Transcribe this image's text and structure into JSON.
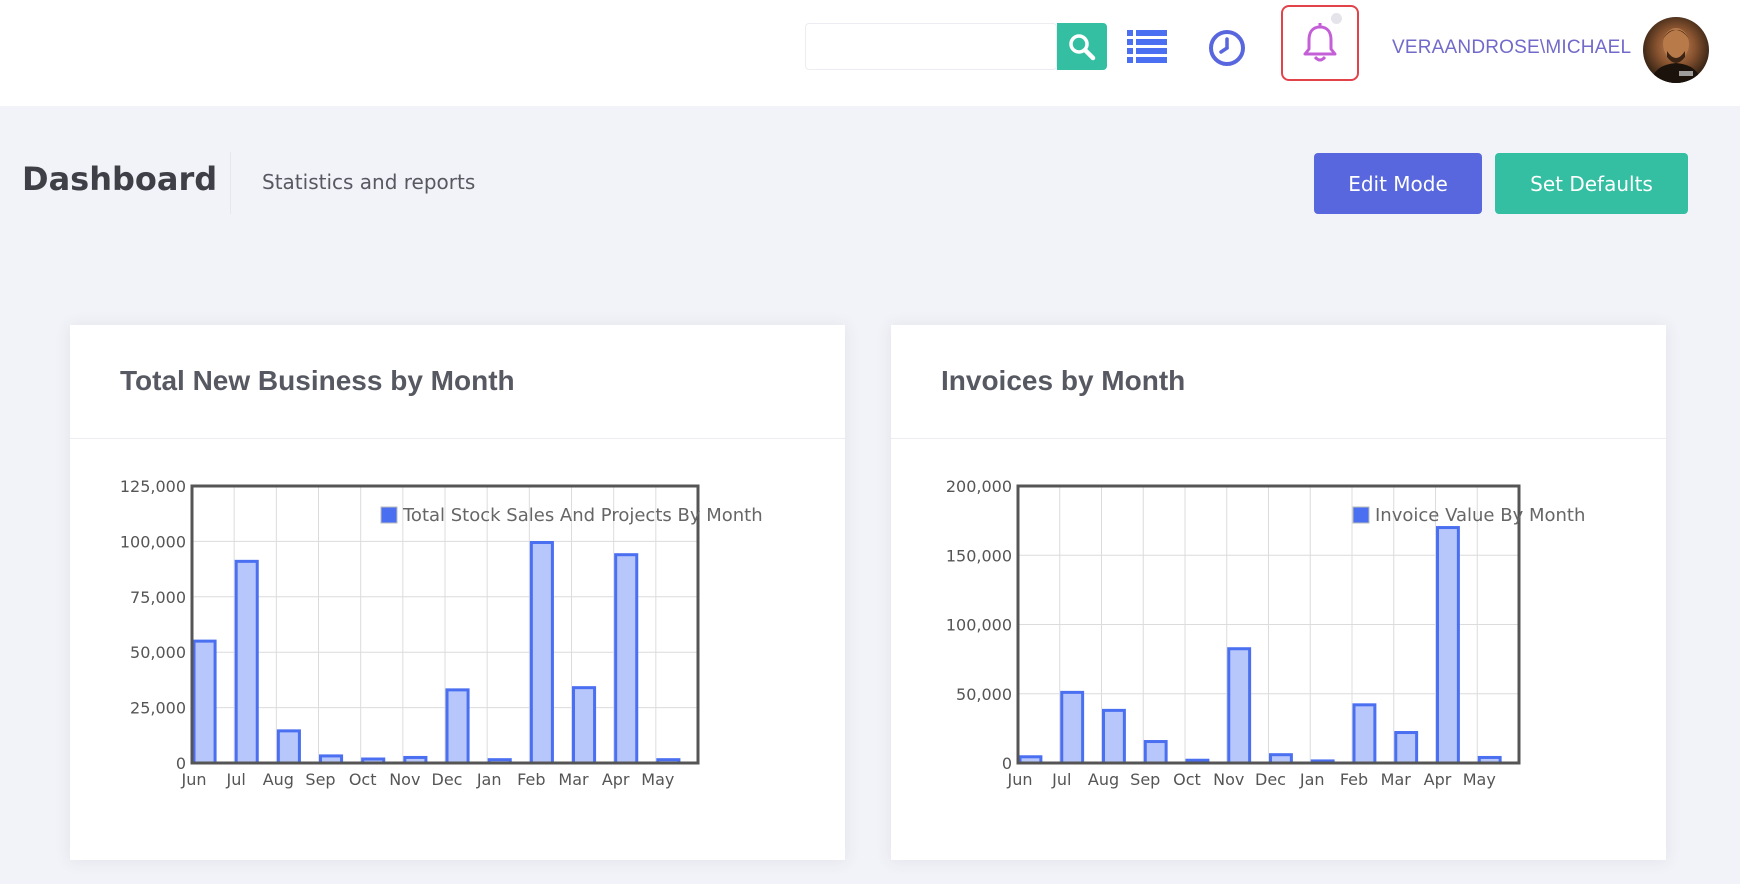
{
  "header": {
    "search": {
      "value": "",
      "placeholder": ""
    },
    "icons": [
      "search-icon",
      "list-icon",
      "clock-icon",
      "bell-icon"
    ],
    "username": "VERAANDROSE\\MICHAEL",
    "colors": {
      "accent": "#716aca",
      "teal": "#34bfa3",
      "brand": "#5867dd",
      "bell": "#c55fd8",
      "highlight": "#e2434b"
    }
  },
  "subheader": {
    "title": "Dashboard",
    "subtitle": "Statistics and reports",
    "edit_label": "Edit Mode",
    "defaults_label": "Set Defaults"
  },
  "portlets": [
    {
      "title": "Total New Business by Month"
    },
    {
      "title": "Invoices by Month"
    }
  ],
  "chart_data": [
    {
      "type": "bar",
      "categories": [
        "Jun",
        "Jul",
        "Aug",
        "Sep",
        "Oct",
        "Nov",
        "Dec",
        "Jan",
        "Feb",
        "Mar",
        "Apr",
        "May"
      ],
      "series": [
        {
          "name": "Total Stock Sales And Projects By Month",
          "values": [
            55000,
            91000,
            14500,
            3200,
            1800,
            2500,
            33000,
            1500,
            99500,
            34000,
            94000,
            1500
          ]
        }
      ],
      "yticks": [
        "0",
        "25,000",
        "50,000",
        "75,000",
        "100,000",
        "125,000"
      ],
      "ylim": [
        0,
        125000
      ],
      "grid": true,
      "legend": "top-right",
      "bar_fill": "#b7c6fb",
      "bar_stroke": "#4a6ff0"
    },
    {
      "type": "bar",
      "categories": [
        "Jun",
        "Jul",
        "Aug",
        "Sep",
        "Oct",
        "Nov",
        "Dec",
        "Jan",
        "Feb",
        "Mar",
        "Apr",
        "May"
      ],
      "series": [
        {
          "name": "Invoice Value By Month",
          "values": [
            4500,
            51000,
            38000,
            15500,
            2000,
            82500,
            6000,
            1500,
            42000,
            22000,
            170000,
            4000
          ]
        }
      ],
      "yticks": [
        "0",
        "50,000",
        "100,000",
        "150,000",
        "200,000"
      ],
      "ylim": [
        0,
        200000
      ],
      "grid": true,
      "legend": "top-right",
      "bar_fill": "#b7c6fb",
      "bar_stroke": "#4a6ff0"
    }
  ]
}
